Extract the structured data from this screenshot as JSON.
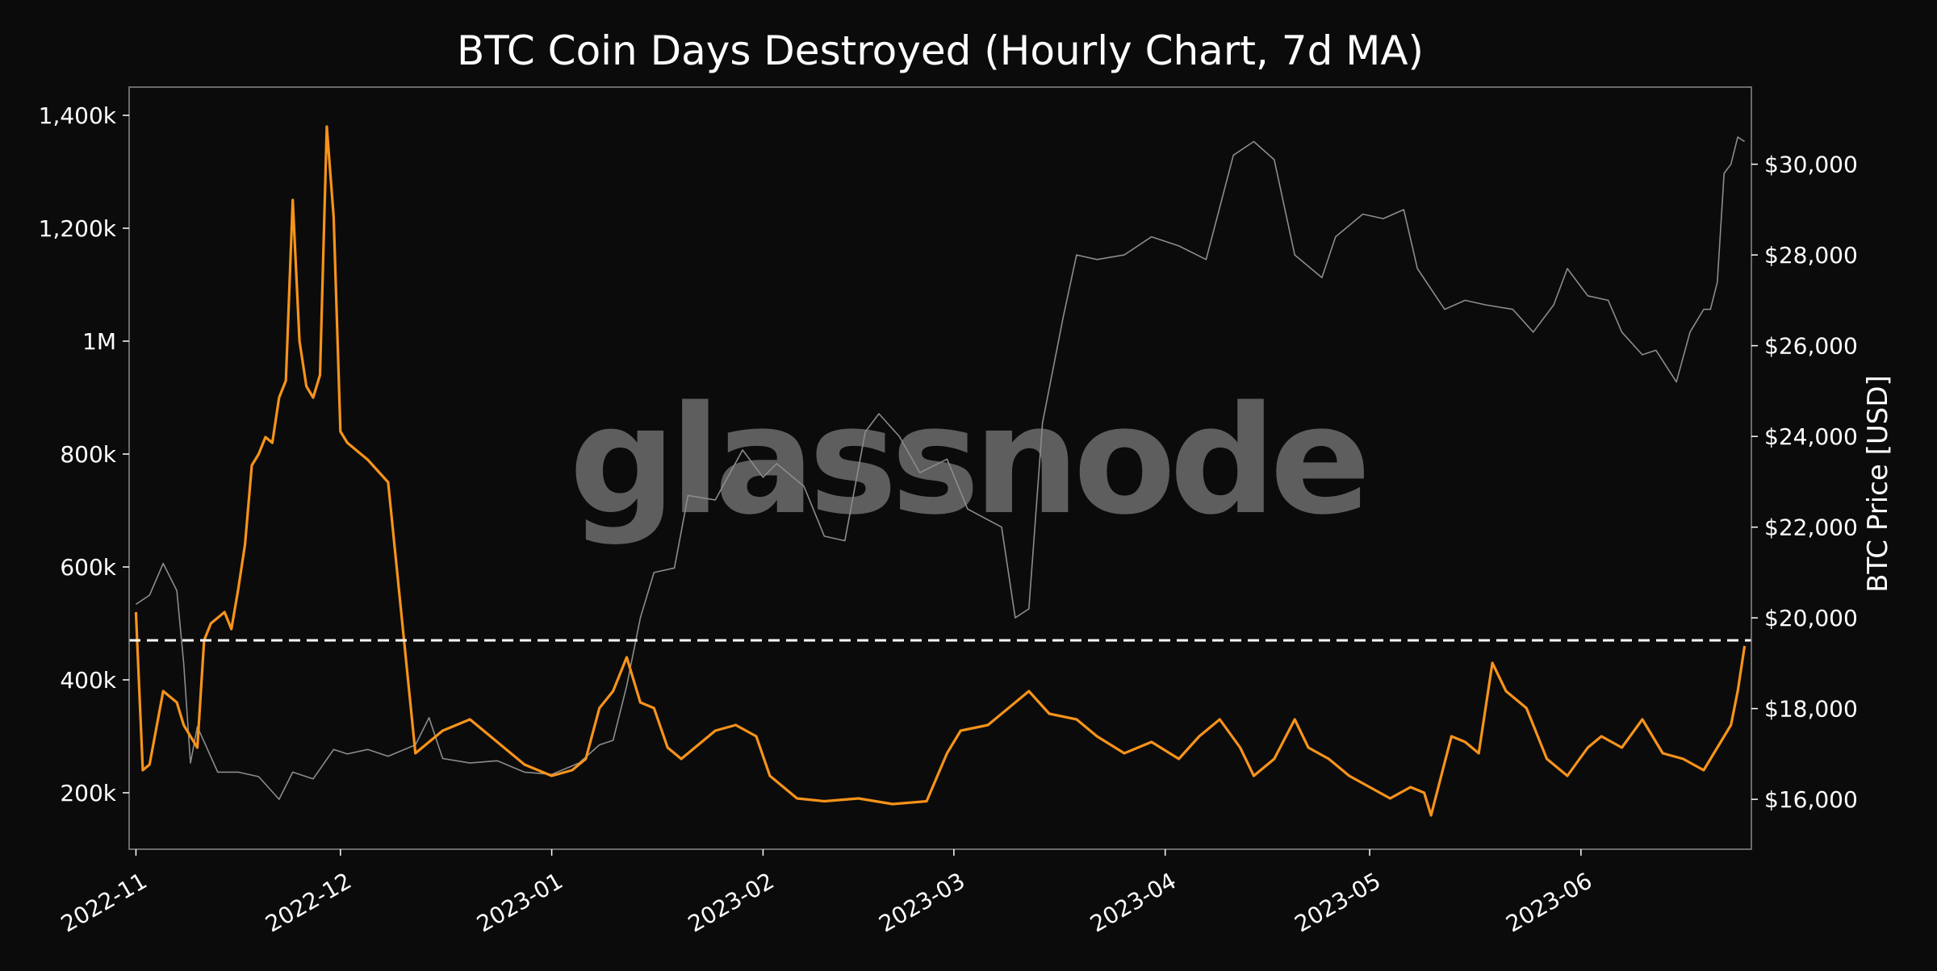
{
  "chart_data": {
    "type": "line",
    "title": "BTC Coin Days Destroyed (Hourly Chart, 7d MA)",
    "watermark": "glassnode",
    "xlabel": "",
    "ylabel_left": "",
    "ylabel_right": "BTC Price [USD]",
    "x_ticks": [
      "2022-11",
      "2022-12",
      "2023-01",
      "2023-02",
      "2023-03",
      "2023-04",
      "2023-05",
      "2023-06"
    ],
    "x_tick_dates": [
      "2022-11-01",
      "2022-12-01",
      "2023-01-01",
      "2023-02-01",
      "2023-03-01",
      "2023-04-01",
      "2023-05-01",
      "2023-06-01"
    ],
    "xlim": [
      "2022-10-31",
      "2023-06-26"
    ],
    "y_left_ticks": [
      {
        "value": 200000,
        "label": "200k"
      },
      {
        "value": 400000,
        "label": "400k"
      },
      {
        "value": 600000,
        "label": "600k"
      },
      {
        "value": 800000,
        "label": "800k"
      },
      {
        "value": 1000000,
        "label": "1M"
      },
      {
        "value": 1200000,
        "label": "1,200k"
      },
      {
        "value": 1400000,
        "label": "1,400k"
      }
    ],
    "ylim_left": [
      100000,
      1450000
    ],
    "y_right_ticks": [
      {
        "value": 16000,
        "label": "$16,000"
      },
      {
        "value": 18000,
        "label": "$18,000"
      },
      {
        "value": 20000,
        "label": "$20,000"
      },
      {
        "value": 22000,
        "label": "$22,000"
      },
      {
        "value": 24000,
        "label": "$24,000"
      },
      {
        "value": 26000,
        "label": "$26,000"
      },
      {
        "value": 28000,
        "label": "$28,000"
      },
      {
        "value": 30000,
        "label": "$30,000"
      }
    ],
    "ylim_right": [
      14900,
      31700
    ],
    "reference_line": {
      "axis": "left",
      "value": 470000,
      "style": "dashed",
      "color": "#ffffff"
    },
    "grid": false,
    "series": [
      {
        "axis": "left",
        "color": "#f7931a",
        "x": [
          "2022-11-01",
          "2022-11-02",
          "2022-11-03",
          "2022-11-05",
          "2022-11-07",
          "2022-11-08",
          "2022-11-09",
          "2022-11-10",
          "2022-11-11",
          "2022-11-12",
          "2022-11-13",
          "2022-11-14",
          "2022-11-15",
          "2022-11-16",
          "2022-11-17",
          "2022-11-18",
          "2022-11-19",
          "2022-11-20",
          "2022-11-21",
          "2022-11-22",
          "2022-11-23",
          "2022-11-24",
          "2022-11-25",
          "2022-11-26",
          "2022-11-27",
          "2022-11-28",
          "2022-11-29",
          "2022-11-30",
          "2022-12-01",
          "2022-12-02",
          "2022-12-05",
          "2022-12-08",
          "2022-12-12",
          "2022-12-16",
          "2022-12-20",
          "2022-12-24",
          "2022-12-28",
          "2023-01-01",
          "2023-01-04",
          "2023-01-06",
          "2023-01-08",
          "2023-01-10",
          "2023-01-12",
          "2023-01-14",
          "2023-01-16",
          "2023-01-18",
          "2023-01-20",
          "2023-01-25",
          "2023-01-28",
          "2023-01-31",
          "2023-02-02",
          "2023-02-06",
          "2023-02-10",
          "2023-02-15",
          "2023-02-20",
          "2023-02-25",
          "2023-02-28",
          "2023-03-02",
          "2023-03-06",
          "2023-03-09",
          "2023-03-12",
          "2023-03-15",
          "2023-03-19",
          "2023-03-22",
          "2023-03-26",
          "2023-03-30",
          "2023-04-03",
          "2023-04-06",
          "2023-04-09",
          "2023-04-12",
          "2023-04-14",
          "2023-04-17",
          "2023-04-20",
          "2023-04-22",
          "2023-04-25",
          "2023-04-28",
          "2023-05-01",
          "2023-05-04",
          "2023-05-07",
          "2023-05-09",
          "2023-05-10",
          "2023-05-13",
          "2023-05-15",
          "2023-05-17",
          "2023-05-19",
          "2023-05-21",
          "2023-05-24",
          "2023-05-27",
          "2023-05-30",
          "2023-06-02",
          "2023-06-04",
          "2023-06-07",
          "2023-06-10",
          "2023-06-13",
          "2023-06-16",
          "2023-06-19",
          "2023-06-21",
          "2023-06-23",
          "2023-06-24",
          "2023-06-25"
        ],
        "values": [
          520000,
          240000,
          250000,
          380000,
          360000,
          320000,
          300000,
          280000,
          470000,
          500000,
          510000,
          520000,
          490000,
          560000,
          640000,
          780000,
          800000,
          830000,
          820000,
          900000,
          930000,
          1250000,
          1000000,
          920000,
          900000,
          940000,
          1380000,
          1220000,
          840000,
          820000,
          790000,
          750000,
          270000,
          310000,
          330000,
          290000,
          250000,
          230000,
          240000,
          260000,
          350000,
          380000,
          440000,
          360000,
          350000,
          280000,
          260000,
          310000,
          320000,
          300000,
          230000,
          190000,
          185000,
          190000,
          180000,
          185000,
          270000,
          310000,
          320000,
          350000,
          380000,
          340000,
          330000,
          300000,
          270000,
          290000,
          260000,
          300000,
          330000,
          280000,
          230000,
          260000,
          330000,
          280000,
          260000,
          230000,
          210000,
          190000,
          210000,
          200000,
          160000,
          300000,
          290000,
          270000,
          430000,
          380000,
          350000,
          260000,
          230000,
          280000,
          300000,
          280000,
          330000,
          270000,
          260000,
          240000,
          280000,
          320000,
          380000,
          460000
        ]
      },
      {
        "axis": "right",
        "color": "#8c8c8c",
        "x": [
          "2022-11-01",
          "2022-11-03",
          "2022-11-05",
          "2022-11-07",
          "2022-11-08",
          "2022-11-09",
          "2022-11-10",
          "2022-11-13",
          "2022-11-16",
          "2022-11-19",
          "2022-11-22",
          "2022-11-24",
          "2022-11-27",
          "2022-11-30",
          "2022-12-02",
          "2022-12-05",
          "2022-12-08",
          "2022-12-12",
          "2022-12-14",
          "2022-12-16",
          "2022-12-20",
          "2022-12-24",
          "2022-12-28",
          "2023-01-01",
          "2023-01-05",
          "2023-01-08",
          "2023-01-10",
          "2023-01-12",
          "2023-01-14",
          "2023-01-16",
          "2023-01-19",
          "2023-01-21",
          "2023-01-25",
          "2023-01-29",
          "2023-02-01",
          "2023-02-03",
          "2023-02-07",
          "2023-02-10",
          "2023-02-13",
          "2023-02-16",
          "2023-02-18",
          "2023-02-21",
          "2023-02-24",
          "2023-02-28",
          "2023-03-03",
          "2023-03-08",
          "2023-03-10",
          "2023-03-12",
          "2023-03-14",
          "2023-03-17",
          "2023-03-19",
          "2023-03-22",
          "2023-03-26",
          "2023-03-30",
          "2023-04-03",
          "2023-04-07",
          "2023-04-11",
          "2023-04-14",
          "2023-04-17",
          "2023-04-20",
          "2023-04-24",
          "2023-04-26",
          "2023-04-30",
          "2023-05-03",
          "2023-05-06",
          "2023-05-08",
          "2023-05-12",
          "2023-05-15",
          "2023-05-18",
          "2023-05-22",
          "2023-05-25",
          "2023-05-28",
          "2023-05-30",
          "2023-06-02",
          "2023-06-05",
          "2023-06-07",
          "2023-06-10",
          "2023-06-12",
          "2023-06-15",
          "2023-06-17",
          "2023-06-19",
          "2023-06-20",
          "2023-06-21",
          "2023-06-22",
          "2023-06-23",
          "2023-06-24",
          "2023-06-25"
        ],
        "values": [
          20300,
          20500,
          21200,
          20600,
          19000,
          16800,
          17600,
          16600,
          16600,
          16500,
          16000,
          16600,
          16450,
          17100,
          17000,
          17100,
          16950,
          17200,
          17800,
          16900,
          16800,
          16850,
          16600,
          16550,
          16800,
          17200,
          17300,
          18500,
          20000,
          21000,
          21100,
          22700,
          22600,
          23700,
          23100,
          23400,
          22900,
          21800,
          21700,
          24100,
          24500,
          24000,
          23200,
          23500,
          22400,
          22000,
          20000,
          20200,
          24300,
          26600,
          28000,
          27900,
          28000,
          28400,
          28200,
          27900,
          30200,
          30500,
          30100,
          28000,
          27500,
          28400,
          28900,
          28800,
          29000,
          27700,
          26800,
          27000,
          26900,
          26800,
          26300,
          26900,
          27700,
          27100,
          27000,
          26300,
          25800,
          25900,
          25200,
          26300,
          26800,
          26800,
          27400,
          29800,
          30000,
          30600,
          30500
        ]
      }
    ]
  }
}
